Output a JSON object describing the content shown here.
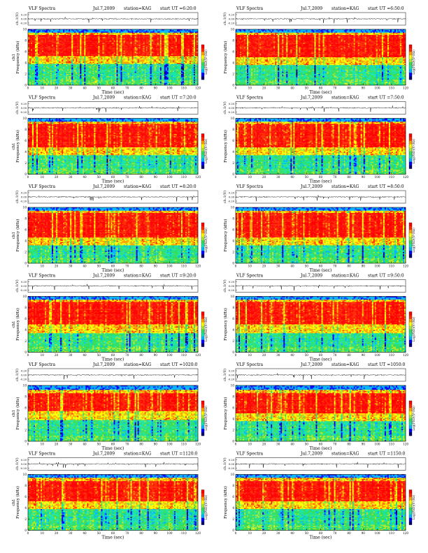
{
  "colors": {
    "colormap": [
      "#000070",
      "#0000ff",
      "#00b4ff",
      "#18e6a8",
      "#37dd55",
      "#a6e830",
      "#ffff00",
      "#ffa000",
      "#ff2a00",
      "#ff0000"
    ],
    "accent": "#ff0000"
  },
  "chart_data": [
    {
      "type": "heatmap",
      "title": "VLF Spectra",
      "date": "Jul.7,2009",
      "station": "station=KAG",
      "start": "start UT =6:20:0",
      "top_ylabel": "ch.1(V)",
      "top_yticks": [
        "0.20",
        "0.00",
        "-0.20"
      ],
      "ylabel": "Frequency (kHz)",
      "ylabel_prefix": "ch1",
      "yticks": [
        0,
        2,
        4,
        6,
        8,
        10
      ],
      "ylim": [
        0,
        10
      ],
      "xlabel": "Time (sec)",
      "xticks": [
        0,
        10,
        20,
        30,
        40,
        50,
        60,
        70,
        80,
        90,
        100,
        110,
        120
      ],
      "xlim": [
        0,
        120
      ],
      "colorbar_label": "Log(PSD)(V²/Hz)",
      "bands": {
        "top": 9.4,
        "red_top": 9.0,
        "red_bottom": 5.2,
        "yellow_bottom": 3.8
      }
    },
    {
      "type": "heatmap",
      "title": "VLF Spectra",
      "date": "Jul.7,2009",
      "station": "station=KAG",
      "start": "start UT =6:50:0",
      "top_ylabel": "ch.1(V)",
      "top_yticks": [
        "0.20",
        "0.00",
        "-0.20"
      ],
      "ylabel": "Frequency (kHz)",
      "ylabel_prefix": "",
      "yticks": [
        0,
        2,
        4,
        6,
        8,
        10
      ],
      "ylim": [
        0,
        10
      ],
      "xlabel": "Time (sec)",
      "xticks": [
        0,
        10,
        20,
        30,
        40,
        50,
        60,
        70,
        80,
        90,
        100,
        110,
        120
      ],
      "xlim": [
        0,
        120
      ],
      "colorbar_label": "Log(PSD)(V²/Hz)",
      "bands": {
        "top": 9.4,
        "red_top": 9.0,
        "red_bottom": 5.0,
        "yellow_bottom": 3.6
      }
    },
    {
      "type": "heatmap",
      "title": "VLF Spectra",
      "date": "Jul.7,2009",
      "station": "station=KAG",
      "start": "start UT =7:20:0",
      "top_ylabel": "ch.1(V)",
      "top_yticks": [
        "0.20",
        "0.00",
        "-0.20"
      ],
      "ylabel": "Frequency (kHz)",
      "ylabel_prefix": "ch1",
      "yticks": [
        0,
        2,
        4,
        6,
        8,
        10
      ],
      "ylim": [
        0,
        10
      ],
      "xlabel": "Time (sec)",
      "xticks": [
        0,
        10,
        20,
        30,
        40,
        50,
        60,
        70,
        80,
        90,
        100,
        110,
        120
      ],
      "xlim": [
        0,
        120
      ],
      "colorbar_label": "Log(PSD)(V²/Hz)",
      "bands": {
        "top": 9.4,
        "red_top": 9.0,
        "red_bottom": 4.8,
        "yellow_bottom": 3.4
      }
    },
    {
      "type": "heatmap",
      "title": "VLF Spectra",
      "date": "Jul.7,2009",
      "station": "station=KAG",
      "start": "start UT =7:50:0",
      "top_ylabel": "ch.1(V)",
      "top_yticks": [
        "0.20",
        "0.00",
        "-0.20"
      ],
      "ylabel": "Frequency (kHz)",
      "ylabel_prefix": "",
      "yticks": [
        0,
        2,
        4,
        6,
        8,
        10
      ],
      "ylim": [
        0,
        10
      ],
      "xlabel": "Time (sec)",
      "xticks": [
        0,
        10,
        20,
        30,
        40,
        50,
        60,
        70,
        80,
        90,
        100,
        110,
        120
      ],
      "xlim": [
        0,
        120
      ],
      "colorbar_label": "Log(PSD)(V²/Hz)",
      "bands": {
        "top": 9.4,
        "red_top": 9.0,
        "red_bottom": 4.8,
        "yellow_bottom": 3.4
      }
    },
    {
      "type": "heatmap",
      "title": "VLF Spectra",
      "date": "Jul.7,2009",
      "station": "station=KAG",
      "start": "start UT =8:20:0",
      "top_ylabel": "ch.1(V)",
      "top_yticks": [
        "0.20",
        "0.00",
        "-0.20"
      ],
      "ylabel": "Frequency (kHz)",
      "ylabel_prefix": "ch1",
      "yticks": [
        0,
        2,
        4,
        6,
        8,
        10
      ],
      "ylim": [
        0,
        10
      ],
      "xlabel": "Time (sec)",
      "xticks": [
        0,
        10,
        20,
        30,
        40,
        50,
        60,
        70,
        80,
        90,
        100,
        110,
        120
      ],
      "xlim": [
        0,
        120
      ],
      "colorbar_label": "Log(PSD)(V²/Hz)",
      "bands": {
        "top": 9.4,
        "red_top": 9.0,
        "red_bottom": 4.6,
        "yellow_bottom": 3.2
      }
    },
    {
      "type": "heatmap",
      "title": "VLF Spectra",
      "date": "Jul.7,2009",
      "station": "station=KAG",
      "start": "start UT =8:50:0",
      "top_ylabel": "ch.1(V)",
      "top_yticks": [
        "0.20",
        "0.00",
        "-0.20"
      ],
      "ylabel": "Frequency (kHz)",
      "ylabel_prefix": "",
      "yticks": [
        0,
        2,
        4,
        6,
        8,
        10
      ],
      "ylim": [
        0,
        10
      ],
      "xlabel": "Time (sec)",
      "xticks": [
        0,
        10,
        20,
        30,
        40,
        50,
        60,
        70,
        80,
        90,
        100,
        110,
        120
      ],
      "xlim": [
        0,
        120
      ],
      "colorbar_label": "Log(PSD)(V²/Hz)",
      "bands": {
        "top": 9.4,
        "red_top": 9.0,
        "red_bottom": 4.6,
        "yellow_bottom": 3.2
      }
    },
    {
      "type": "heatmap",
      "title": "VLF Spectra",
      "date": "Jul.7,2009",
      "station": "station=KAG",
      "start": "start UT =9:20:0",
      "top_ylabel": "ch.1(V)",
      "top_yticks": [
        "0.20",
        "0.00",
        "-0.20"
      ],
      "ylabel": "Frequency (kHz)",
      "ylabel_prefix": "ch1",
      "yticks": [
        0,
        2,
        4,
        6,
        8,
        10
      ],
      "ylim": [
        0,
        10
      ],
      "xlabel": "Time (sec)",
      "xticks": [
        0,
        10,
        20,
        30,
        40,
        50,
        60,
        70,
        80,
        90,
        100,
        110,
        120
      ],
      "xlim": [
        0,
        120
      ],
      "colorbar_label": "Log(PSD)(V²/Hz)",
      "bands": {
        "top": 9.4,
        "red_top": 9.0,
        "red_bottom": 5.0,
        "yellow_bottom": 3.4
      }
    },
    {
      "type": "heatmap",
      "title": "VLF Spectra",
      "date": "Jul.7,2009",
      "station": "station=KAG",
      "start": "start UT =9:50:0",
      "top_ylabel": "ch.1(V)",
      "top_yticks": [
        "0.20",
        "0.00",
        "-0.20"
      ],
      "ylabel": "Frequency (kHz)",
      "ylabel_prefix": "",
      "yticks": [
        0,
        2,
        4,
        6,
        8,
        10
      ],
      "ylim": [
        0,
        10
      ],
      "xlabel": "Time (sec)",
      "xticks": [
        0,
        10,
        20,
        30,
        40,
        50,
        60,
        70,
        80,
        90,
        100,
        110,
        120
      ],
      "xlim": [
        0,
        120
      ],
      "colorbar_label": "Log(PSD)(V²/Hz)",
      "bands": {
        "top": 9.4,
        "red_top": 9.0,
        "red_bottom": 5.0,
        "yellow_bottom": 3.4
      }
    },
    {
      "type": "heatmap",
      "title": "VLF Spectra",
      "date": "Jul.7,2009",
      "station": "station=KAG",
      "start": "start UT =1020:0",
      "top_ylabel": "ch.1(V)",
      "top_yticks": [
        "0.20",
        "0.00",
        "-0.20"
      ],
      "ylabel": "Frequency (kHz)",
      "ylabel_prefix": "ch1",
      "yticks": [
        0,
        2,
        4,
        6,
        8,
        10
      ],
      "ylim": [
        0,
        10
      ],
      "xlabel": "Time (sec)",
      "xticks": [
        0,
        10,
        20,
        30,
        40,
        50,
        60,
        70,
        80,
        90,
        100,
        110,
        120
      ],
      "xlim": [
        0,
        120
      ],
      "colorbar_label": "Log(PSD)(V²/Hz)",
      "bands": {
        "top": 9.2,
        "red_top": 8.6,
        "red_bottom": 5.4,
        "yellow_bottom": 3.8
      }
    },
    {
      "type": "heatmap",
      "title": "VLF Spectra",
      "date": "Jul.7,2009",
      "station": "station=KAG",
      "start": "start UT =1050:0",
      "top_ylabel": "ch.1(V)",
      "top_yticks": [
        "0.20",
        "0.00",
        "-0.20"
      ],
      "ylabel": "Frequency (kHz)",
      "ylabel_prefix": "",
      "yticks": [
        0,
        2,
        4,
        6,
        8,
        10
      ],
      "ylim": [
        0,
        10
      ],
      "xlabel": "Time (sec)",
      "xticks": [
        0,
        10,
        20,
        30,
        40,
        50,
        60,
        70,
        80,
        90,
        100,
        110,
        120
      ],
      "xlim": [
        0,
        120
      ],
      "colorbar_label": "Log(PSD)(V²/Hz)",
      "bands": {
        "top": 9.2,
        "red_top": 8.6,
        "red_bottom": 5.0,
        "yellow_bottom": 3.6
      }
    },
    {
      "type": "heatmap",
      "title": "VLF Spectra",
      "date": "Jul.7,2009",
      "station": "station=KAG",
      "start": "start UT =1120:0",
      "top_ylabel": "ch.1(V)",
      "top_yticks": [
        "0.20",
        "0.00",
        "-0.20"
      ],
      "ylabel": "Frequency (kHz)",
      "ylabel_prefix": "ch1",
      "yticks": [
        0,
        2,
        4,
        6,
        8,
        10
      ],
      "ylim": [
        0,
        10
      ],
      "xlabel": "Time (sec)",
      "xticks": [
        0,
        10,
        20,
        30,
        40,
        50,
        60,
        70,
        80,
        90,
        100,
        110,
        120
      ],
      "xlim": [
        0,
        120
      ],
      "colorbar_label": "Log(PSD)(V²/Hz)",
      "bands": {
        "top": 9.4,
        "red_top": 8.8,
        "red_bottom": 5.2,
        "yellow_bottom": 3.8
      }
    },
    {
      "type": "heatmap",
      "title": "VLF Spectra",
      "date": "Jul.7,2009",
      "station": "station=KAG",
      "start": "start UT =1150:0",
      "top_ylabel": "ch.1(V)",
      "top_yticks": [
        "0.20",
        "0.00",
        "-0.20"
      ],
      "ylabel": "Frequency (kHz)",
      "ylabel_prefix": "",
      "yticks": [
        0,
        2,
        4,
        6,
        8,
        10
      ],
      "ylim": [
        0,
        10
      ],
      "xlabel": "Time (sec)",
      "xticks": [
        0,
        10,
        20,
        30,
        40,
        50,
        60,
        70,
        80,
        90,
        100,
        110,
        120
      ],
      "xlim": [
        0,
        120
      ],
      "colorbar_label": "Log(PSD)(V²/Hz)",
      "bands": {
        "top": 9.4,
        "red_top": 8.8,
        "red_bottom": 5.2,
        "yellow_bottom": 3.8
      }
    }
  ]
}
